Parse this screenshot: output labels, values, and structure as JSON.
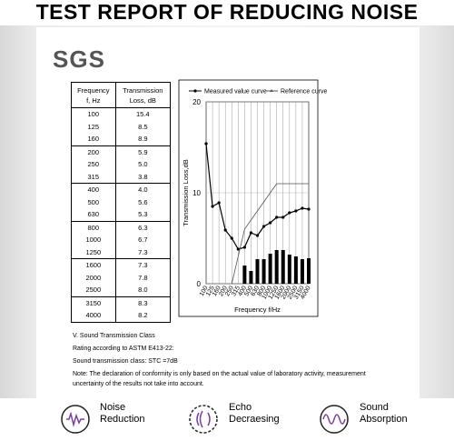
{
  "header": {
    "title": "TEST REPORT OF REDUCING NOISE",
    "logo": "SGS"
  },
  "table": {
    "header": [
      [
        "Frequency",
        "f, Hz"
      ],
      [
        "Transmission",
        "Loss, dB"
      ]
    ],
    "rows": [
      [
        "100",
        "15.4"
      ],
      [
        "125",
        "8.5"
      ],
      [
        "160",
        "8.9"
      ],
      [
        "200",
        "5.9"
      ],
      [
        "250",
        "5.0"
      ],
      [
        "315",
        "3.8"
      ],
      [
        "400",
        "4.0"
      ],
      [
        "500",
        "5.6"
      ],
      [
        "630",
        "5.3"
      ],
      [
        "800",
        "6.3"
      ],
      [
        "1000",
        "6.7"
      ],
      [
        "1250",
        "7.3"
      ],
      [
        "1600",
        "7.3"
      ],
      [
        "2000",
        "7.8"
      ],
      [
        "2500",
        "8.0"
      ],
      [
        "3150",
        "8.3"
      ],
      [
        "4000",
        "8.2"
      ]
    ]
  },
  "chart_data": {
    "type": "line",
    "x_label": "Frequency f/Hz",
    "y_label": "Transmission Loss,dB",
    "categories": [
      "100",
      "125",
      "160",
      "200",
      "250",
      "315",
      "400",
      "500",
      "630",
      "800",
      "1000",
      "1250",
      "1600",
      "2000",
      "2500",
      "3150",
      "4000"
    ],
    "series": [
      {
        "name": "Measured value curve",
        "color": "#000000",
        "values": [
          15.4,
          8.5,
          8.9,
          5.9,
          5.0,
          3.8,
          4.0,
          5.6,
          5.3,
          6.3,
          6.7,
          7.3,
          7.3,
          7.8,
          8.0,
          8.3,
          8.2
        ]
      },
      {
        "name": "Reference curve",
        "color": "#555555",
        "values": [
          null,
          null,
          null,
          null,
          0,
          3,
          6,
          7,
          8,
          9,
          10,
          11,
          11,
          11,
          11,
          11,
          11
        ]
      }
    ],
    "bar_values": [
      null,
      null,
      null,
      null,
      null,
      null,
      2.0,
      1.4,
      2.7,
      2.7,
      3.3,
      3.7,
      3.7,
      3.2,
      3.0,
      2.7,
      2.8
    ],
    "bar_color": "#000000",
    "ylim": [
      0,
      20
    ],
    "yticks": [
      0,
      10,
      20
    ],
    "grid": true
  },
  "notes": [
    "V.    Sound Transmission Class",
    "Rating according to ASTM E413-22:",
    "Sound transmission class: STC =7dB",
    "Note: The declaration of conformity is only based on the actual value of laboratory activity, measurement uncertainty of the results not take into account."
  ],
  "features": [
    [
      "Noise",
      "Reduction"
    ],
    [
      "Echo",
      "Decraesing"
    ],
    [
      "Sound",
      "Absorption"
    ]
  ]
}
